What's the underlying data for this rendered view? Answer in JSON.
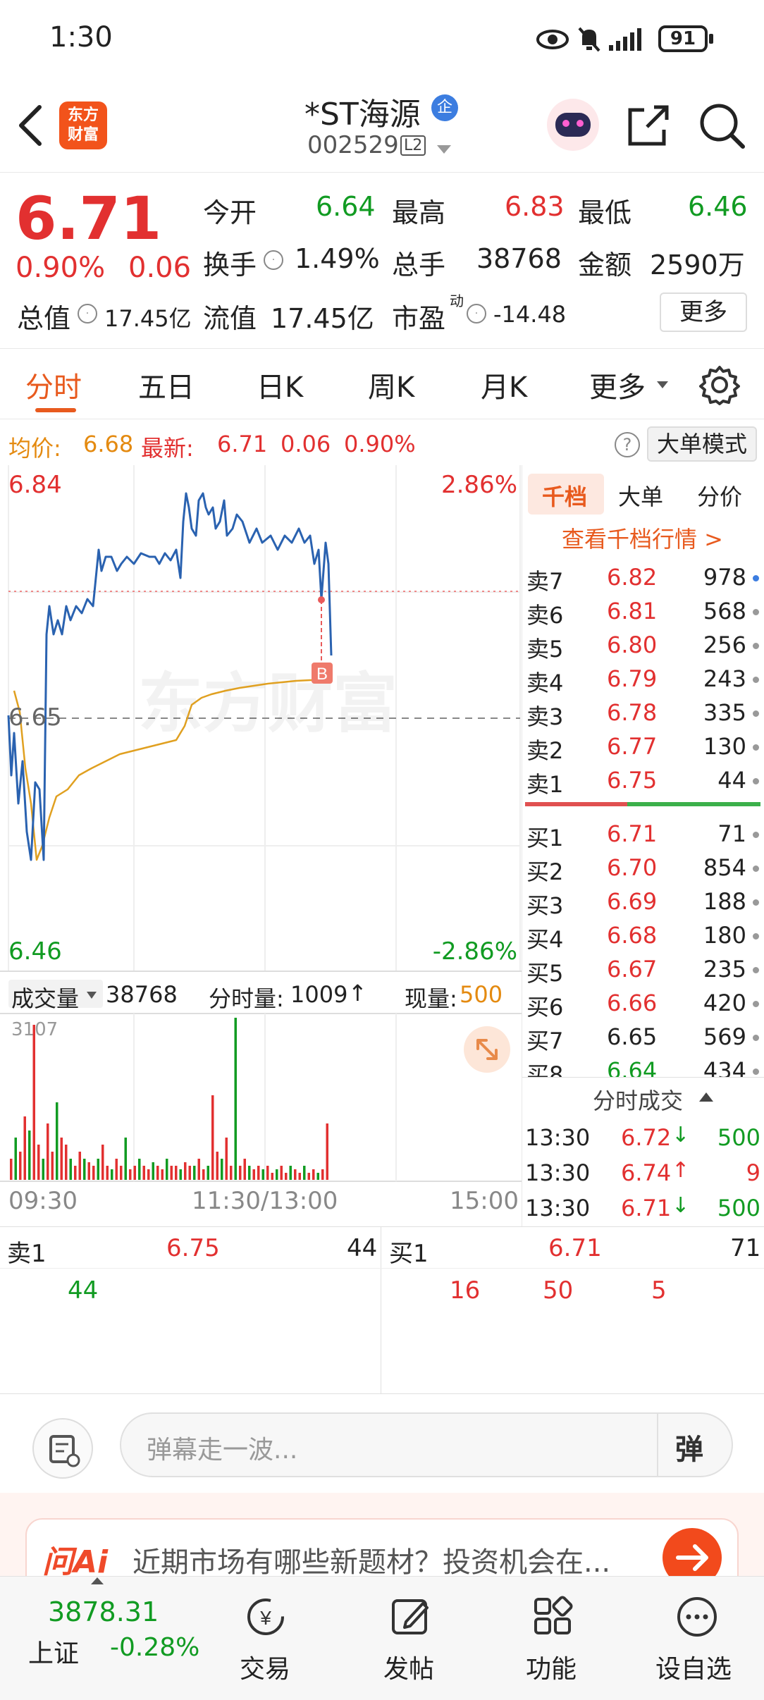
{
  "status_bar": {
    "time": "1:30",
    "battery": "91",
    "icons": [
      "eye-icon",
      "bell-off-icon",
      "signal-icon",
      "battery-icon"
    ]
  },
  "header": {
    "logo_text_line1": "东方",
    "logo_text_line2": "财富",
    "stock_name": "*ST海源",
    "stock_code": "002529",
    "level_badge": "L2",
    "badge_text": "企"
  },
  "quote": {
    "price": "6.71",
    "change_pct": "0.90%",
    "change_amt": "0.06",
    "open_label": "今开",
    "open": "6.64",
    "high_label": "最高",
    "high": "6.83",
    "low_label": "最低",
    "low": "6.46",
    "turnover_label": "换手",
    "turnover": "1.49%",
    "volume_label": "总手",
    "volume": "38768",
    "amount_label": "金额",
    "amount": "2590万",
    "market_cap_label": "总值",
    "market_cap": "17.45亿",
    "float_cap_label": "流值",
    "float_cap": "17.45亿",
    "pe_label": "市盈",
    "pe_sup": "动",
    "pe": "-14.48",
    "more_button": "更多"
  },
  "tabs": {
    "items": [
      "分时",
      "五日",
      "日K",
      "周K",
      "月K",
      "更多"
    ],
    "active": 0
  },
  "avg_bar": {
    "avg_label": "均价:",
    "avg": "6.68",
    "latest_label": "最新:",
    "latest": "6.71",
    "chg": "0.06",
    "pct": "0.90%",
    "mode_button": "大单模式"
  },
  "chart": {
    "price_top": "6.84",
    "price_bottom": "6.46",
    "price_mid": "6.65",
    "pct_top": "2.86%",
    "pct_bottom": "-2.86%",
    "watermark": "东方财富",
    "marker": "B",
    "volume_label": "成交量",
    "volume_total": "38768",
    "period_vol_label": "分时量:",
    "period_vol": "1009",
    "cur_vol_label": "现量:",
    "cur_vol": "500",
    "vol_max": "3107",
    "time_start": "09:30",
    "time_mid": "11:30/13:00",
    "time_end": "15:00"
  },
  "orderbook": {
    "tabs": [
      "千档",
      "大单",
      "分价"
    ],
    "view_link": "查看千档行情 >",
    "asks": [
      {
        "label": "卖7",
        "price": "6.82",
        "vol": "978"
      },
      {
        "label": "卖6",
        "price": "6.81",
        "vol": "568"
      },
      {
        "label": "卖5",
        "price": "6.80",
        "vol": "256"
      },
      {
        "label": "卖4",
        "price": "6.79",
        "vol": "243"
      },
      {
        "label": "卖3",
        "price": "6.78",
        "vol": "335"
      },
      {
        "label": "卖2",
        "price": "6.77",
        "vol": "130"
      },
      {
        "label": "卖1",
        "price": "6.75",
        "vol": "44"
      }
    ],
    "bids": [
      {
        "label": "买1",
        "price": "6.71",
        "vol": "71"
      },
      {
        "label": "买2",
        "price": "6.70",
        "vol": "854"
      },
      {
        "label": "买3",
        "price": "6.69",
        "vol": "188"
      },
      {
        "label": "买4",
        "price": "6.68",
        "vol": "180"
      },
      {
        "label": "买5",
        "price": "6.67",
        "vol": "235"
      },
      {
        "label": "买6",
        "price": "6.66",
        "vol": "420"
      },
      {
        "label": "买7",
        "price": "6.65",
        "vol": "569"
      },
      {
        "label": "买8",
        "price": "6.64",
        "vol": "434"
      }
    ],
    "trades_title": "分时成交",
    "trades": [
      {
        "time": "13:30",
        "price": "6.72",
        "dir": "↓",
        "vol": "500"
      },
      {
        "time": "13:30",
        "price": "6.74",
        "dir": "↑",
        "vol": "9"
      },
      {
        "time": "13:30",
        "price": "6.71",
        "dir": "↓",
        "vol": "500"
      }
    ]
  },
  "level1": {
    "ask_label": "卖1",
    "ask_price": "6.75",
    "ask_vol": "44",
    "ask_orders": [
      "44"
    ],
    "bid_label": "买1",
    "bid_price": "6.71",
    "bid_vol": "71",
    "bid_orders": [
      "16",
      "50",
      "5"
    ]
  },
  "comment": {
    "placeholder": "弹幕走一波...",
    "danmu_button": "弹"
  },
  "ai": {
    "logo": "问Ai",
    "question": "近期市场有哪些新题材？投资机会在..."
  },
  "bottom_nav": {
    "index_value": "3878.31",
    "index_name": "上证",
    "index_change": "-0.28%",
    "items": [
      "交易",
      "发帖",
      "功能",
      "设自选"
    ]
  },
  "colors": {
    "red": "#e23030",
    "green": "#119b22",
    "orange": "#e48a10",
    "blue_line": "#2a62b0",
    "avg_line": "#e0a020"
  }
}
